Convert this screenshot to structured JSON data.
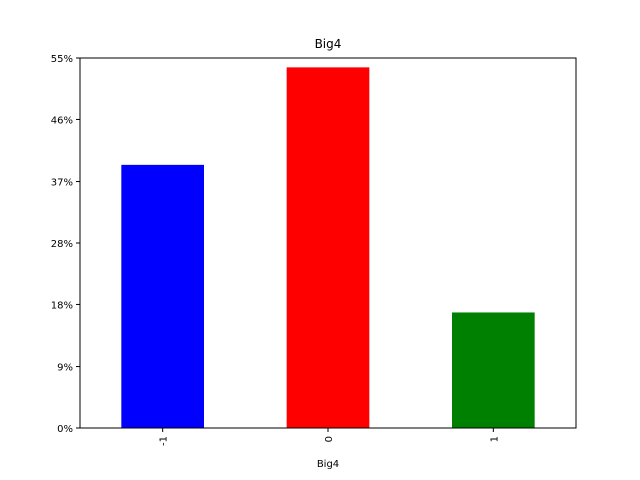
{
  "chart_data": {
    "type": "bar",
    "title": "Big4",
    "xlabel": "Big4",
    "ylabel": "",
    "categories": [
      "-1",
      "0",
      "1"
    ],
    "values": [
      39.4,
      54.0,
      17.3
    ],
    "value_unit": "%",
    "bar_colors": [
      "#0000ff",
      "#ff0000",
      "#008000"
    ],
    "ylim": [
      0,
      55.4
    ],
    "yticks": [
      0,
      9.2,
      18.5,
      27.7,
      36.9,
      46.2,
      55.4
    ],
    "ytick_labels": [
      "0%",
      "9%",
      "18%",
      "28%",
      "37%",
      "46%",
      "55%"
    ],
    "grid": false,
    "legend": "none"
  }
}
